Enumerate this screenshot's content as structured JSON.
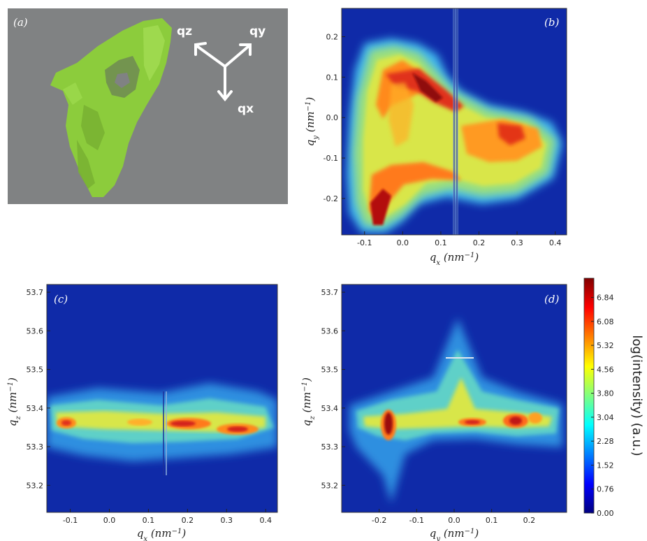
{
  "chart_data": [
    {
      "panel_label": "(a)",
      "type": "other",
      "description_labels": [
        "qz",
        "qy",
        "qx"
      ],
      "colors": {
        "background": "#808283",
        "object": "#8ccc3c",
        "arrows": "#ffffff"
      }
    },
    {
      "panel_label": "(b)",
      "type": "heatmap",
      "xlabel": "q_x (nm^-1)",
      "ylabel": "q_y (nm^-1)",
      "xlim": [
        -0.16,
        0.43
      ],
      "ylim": [
        -0.29,
        0.27
      ],
      "xticks": [
        "-0.1",
        "0.0",
        "0.1",
        "0.2",
        "0.3",
        "0.4"
      ],
      "yticks": [
        "-0.2",
        "-0.1",
        "0.0",
        "0.1",
        "0.2"
      ],
      "features": [
        {
          "x": -0.04,
          "y": 0.14,
          "value": 6.5
        },
        {
          "x": 0.05,
          "y": 0.1,
          "value": 7.0
        },
        {
          "x": -0.06,
          "y": -0.24,
          "value": 6.3
        },
        {
          "x": 0.27,
          "y": -0.01,
          "value": 5.6
        },
        {
          "x": 0.0,
          "y": 0.05,
          "value": 5.3
        },
        {
          "x": 0.09,
          "y": -0.17,
          "value": 5.0
        }
      ]
    },
    {
      "panel_label": "(c)",
      "type": "heatmap",
      "xlabel": "q_x (nm^-1)",
      "ylabel": "q_z (nm^-1)",
      "xlim": [
        -0.16,
        0.43
      ],
      "ylim": [
        53.13,
        53.72
      ],
      "xticks": [
        "-0.1",
        "0.0",
        "0.1",
        "0.2",
        "0.3",
        "0.4"
      ],
      "yticks": [
        "53.2",
        "53.3",
        "53.4",
        "53.5",
        "53.6",
        "53.7"
      ],
      "features": [
        {
          "x": -0.12,
          "y": 53.365,
          "value": 5.6
        },
        {
          "x": 0.2,
          "y": 53.36,
          "value": 5.9
        },
        {
          "x": 0.33,
          "y": 53.35,
          "value": 5.8
        },
        {
          "x": 0.05,
          "y": 53.365,
          "value": 4.4
        }
      ]
    },
    {
      "panel_label": "(d)",
      "type": "heatmap",
      "xlabel": "q_y (nm^-1)",
      "ylabel": "q_z (nm^-1)",
      "xlim": [
        -0.3,
        0.3
      ],
      "ylim": [
        53.13,
        53.72
      ],
      "xticks": [
        "-0.2",
        "-0.1",
        "0.0",
        "0.1",
        "0.2"
      ],
      "yticks": [
        "53.2",
        "53.3",
        "53.4",
        "53.5",
        "53.6",
        "53.7"
      ],
      "features": [
        {
          "x": -0.175,
          "y": 53.36,
          "value": 7.3
        },
        {
          "x": 0.03,
          "y": 53.37,
          "value": 5.8
        },
        {
          "x": 0.15,
          "y": 53.37,
          "value": 5.9
        },
        {
          "x": 0.2,
          "y": 53.38,
          "value": 5.4
        }
      ]
    }
  ],
  "colorbar": {
    "label": "log(intensity) (a.u.)",
    "ticks": [
      "0.00",
      "0.76",
      "1.52",
      "2.28",
      "3.04",
      "3.80",
      "4.56",
      "5.32",
      "6.08",
      "6.84"
    ],
    "min": 0.0,
    "max": 7.45,
    "colormap": "jet"
  },
  "labels": {
    "a": "(a)",
    "b": "(b)",
    "c": "(c)",
    "d": "(d)",
    "qz": "qz",
    "qy": "qy",
    "qx": "qx"
  }
}
